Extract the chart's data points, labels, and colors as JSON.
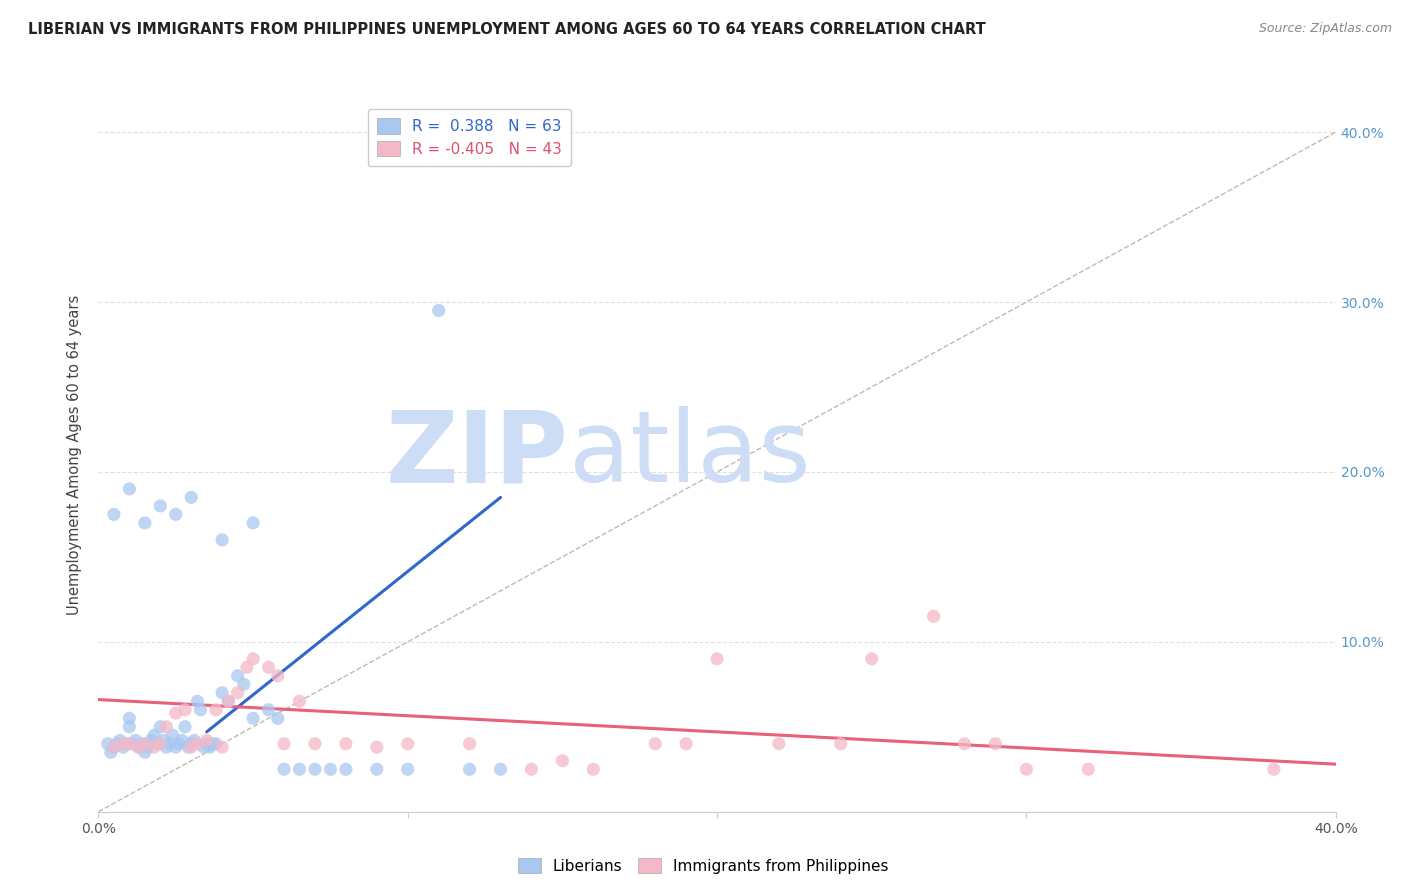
{
  "title": "LIBERIAN VS IMMIGRANTS FROM PHILIPPINES UNEMPLOYMENT AMONG AGES 60 TO 64 YEARS CORRELATION CHART",
  "source": "Source: ZipAtlas.com",
  "ylabel": "Unemployment Among Ages 60 to 64 years",
  "xlim": [
    0.0,
    0.4
  ],
  "ylim": [
    0.0,
    0.42
  ],
  "x_ticks": [
    0.0,
    0.1,
    0.2,
    0.3,
    0.4
  ],
  "x_tick_labels_show": [
    "0.0%",
    "",
    "",
    "",
    "40.0%"
  ],
  "y_ticks": [
    0.0,
    0.1,
    0.2,
    0.3,
    0.4
  ],
  "y_tick_labels_right": [
    "",
    "10.0%",
    "20.0%",
    "30.0%",
    "40.0%"
  ],
  "blue_color": "#a8c8f0",
  "pink_color": "#f5b8c8",
  "blue_line_color": "#3366cc",
  "pink_line_color": "#e8607a",
  "dashed_line_color": "#bbbbbb",
  "watermark_zip_color": "#ccddf5",
  "watermark_atlas_color": "#ccddf5",
  "blue_scatter_x": [
    0.003,
    0.004,
    0.005,
    0.006,
    0.007,
    0.008,
    0.009,
    0.01,
    0.01,
    0.011,
    0.012,
    0.013,
    0.014,
    0.015,
    0.016,
    0.016,
    0.017,
    0.018,
    0.019,
    0.02,
    0.021,
    0.022,
    0.023,
    0.024,
    0.025,
    0.026,
    0.027,
    0.028,
    0.029,
    0.03,
    0.031,
    0.032,
    0.033,
    0.034,
    0.035,
    0.036,
    0.037,
    0.038,
    0.04,
    0.042,
    0.045,
    0.047,
    0.05,
    0.055,
    0.058,
    0.06,
    0.065,
    0.07,
    0.075,
    0.08,
    0.09,
    0.1,
    0.11,
    0.12,
    0.13,
    0.005,
    0.01,
    0.015,
    0.02,
    0.025,
    0.03,
    0.04,
    0.05
  ],
  "blue_scatter_y": [
    0.04,
    0.035,
    0.038,
    0.04,
    0.042,
    0.038,
    0.04,
    0.055,
    0.05,
    0.04,
    0.042,
    0.038,
    0.04,
    0.035,
    0.04,
    0.038,
    0.042,
    0.045,
    0.04,
    0.05,
    0.042,
    0.038,
    0.04,
    0.045,
    0.038,
    0.04,
    0.042,
    0.05,
    0.038,
    0.04,
    0.042,
    0.065,
    0.06,
    0.038,
    0.04,
    0.038,
    0.04,
    0.04,
    0.07,
    0.065,
    0.08,
    0.075,
    0.055,
    0.06,
    0.055,
    0.025,
    0.025,
    0.025,
    0.025,
    0.025,
    0.025,
    0.025,
    0.295,
    0.025,
    0.025,
    0.175,
    0.19,
    0.17,
    0.18,
    0.175,
    0.185,
    0.16,
    0.17
  ],
  "pink_scatter_x": [
    0.005,
    0.008,
    0.01,
    0.013,
    0.015,
    0.018,
    0.02,
    0.022,
    0.025,
    0.028,
    0.03,
    0.032,
    0.035,
    0.038,
    0.04,
    0.042,
    0.045,
    0.048,
    0.05,
    0.055,
    0.058,
    0.06,
    0.065,
    0.07,
    0.08,
    0.09,
    0.1,
    0.12,
    0.14,
    0.15,
    0.16,
    0.18,
    0.19,
    0.2,
    0.22,
    0.24,
    0.25,
    0.27,
    0.28,
    0.29,
    0.3,
    0.32,
    0.38
  ],
  "pink_scatter_y": [
    0.038,
    0.04,
    0.04,
    0.038,
    0.04,
    0.038,
    0.04,
    0.05,
    0.058,
    0.06,
    0.038,
    0.04,
    0.042,
    0.06,
    0.038,
    0.065,
    0.07,
    0.085,
    0.09,
    0.085,
    0.08,
    0.04,
    0.065,
    0.04,
    0.04,
    0.038,
    0.04,
    0.04,
    0.025,
    0.03,
    0.025,
    0.04,
    0.04,
    0.09,
    0.04,
    0.04,
    0.09,
    0.115,
    0.04,
    0.04,
    0.025,
    0.025,
    0.025
  ],
  "blue_line_x": [
    0.035,
    0.13
  ],
  "blue_line_y": [
    0.047,
    0.185
  ],
  "pink_line_x": [
    0.0,
    0.4
  ],
  "pink_line_y": [
    0.066,
    0.028
  ],
  "dashed_line_x": [
    0.0,
    0.4
  ],
  "dashed_line_y": [
    0.0,
    0.4
  ],
  "grid_color": "#e0e0e0",
  "grid_linestyle": "--",
  "title_fontsize": 10.5,
  "source_fontsize": 9,
  "axis_tick_fontsize": 10,
  "ylabel_fontsize": 10.5,
  "scatter_size": 90,
  "scatter_alpha": 0.75
}
